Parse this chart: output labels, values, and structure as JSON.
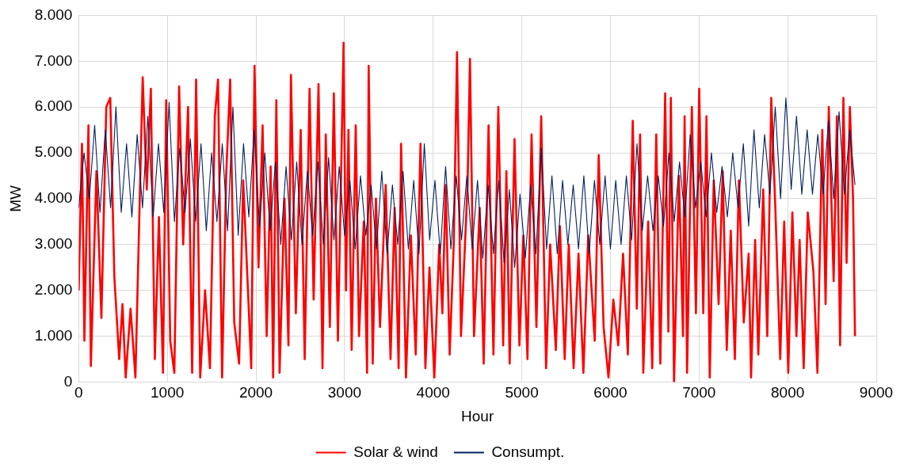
{
  "chart_data": {
    "type": "line",
    "xlabel": "Hour",
    "ylabel": "MW",
    "xlim": [
      0,
      9000
    ],
    "xticks": [
      0,
      1000,
      2000,
      3000,
      4000,
      5000,
      6000,
      7000,
      8000,
      9000
    ],
    "ylim": [
      0,
      8000
    ],
    "yticks": [
      {
        "value": 0,
        "label": "0"
      },
      {
        "value": 1000,
        "label": "1.000"
      },
      {
        "value": 2000,
        "label": "2.000"
      },
      {
        "value": 3000,
        "label": "3.000"
      },
      {
        "value": 4000,
        "label": "4.000"
      },
      {
        "value": 5000,
        "label": "5.000"
      },
      {
        "value": 6000,
        "label": "6.000"
      },
      {
        "value": 7000,
        "label": "7.000"
      },
      {
        "value": 8000,
        "label": "8.000"
      }
    ],
    "grid": true,
    "legend": "bottom",
    "marker": "none",
    "line_style": "solid",
    "series": [
      {
        "name": "Solar & wind",
        "color": "#ff0000",
        "x": [
          0,
          37,
          64,
          110,
          137,
          200,
          256,
          311,
          356,
          402,
          457,
          494,
          530,
          585,
          640,
          722,
          768,
          814,
          859,
          905,
          951,
          987,
          1033,
          1079,
          1133,
          1179,
          1234,
          1280,
          1325,
          1371,
          1426,
          1481,
          1536,
          1572,
          1618,
          1664,
          1709,
          1755,
          1810,
          1856,
          1910,
          1947,
          1984,
          2029,
          2075,
          2121,
          2166,
          2194,
          2230,
          2267,
          2322,
          2367,
          2395,
          2450,
          2505,
          2550,
          2605,
          2651,
          2706,
          2751,
          2788,
          2834,
          2879,
          2925,
          2989,
          3016,
          3044,
          3080,
          3126,
          3163,
          3217,
          3254,
          3272,
          3318,
          3354,
          3400,
          3464,
          3519,
          3565,
          3610,
          3638,
          3693,
          3748,
          3803,
          3857,
          3912,
          3958,
          4013,
          4068,
          4104,
          4141,
          4186,
          4232,
          4269,
          4314,
          4388,
          4415,
          4461,
          4525,
          4570,
          4625,
          4680,
          4735,
          4790,
          4826,
          4863,
          4918,
          4973,
          5018,
          5064,
          5110,
          5165,
          5219,
          5274,
          5320,
          5384,
          5430,
          5484,
          5530,
          5585,
          5640,
          5695,
          5750,
          5823,
          5868,
          5923,
          5978,
          6033,
          6088,
          6143,
          6197,
          6252,
          6298,
          6335,
          6371,
          6426,
          6472,
          6517,
          6563,
          6618,
          6654,
          6682,
          6718,
          6773,
          6819,
          6837,
          6865,
          6919,
          6965,
          7002,
          7048,
          7084,
          7121,
          7166,
          7221,
          7267,
          7313,
          7358,
          7404,
          7450,
          7505,
          7560,
          7587,
          7633,
          7669,
          7724,
          7770,
          7815,
          7861,
          7916,
          7961,
          8007,
          8053,
          8099,
          8135,
          8181,
          8227,
          8291,
          8336,
          8391,
          8428,
          8464,
          8519,
          8556,
          8592,
          8629,
          8665,
          8702,
          8738,
          8760
        ],
        "values": [
          2000,
          5200,
          900,
          5600,
          350,
          4600,
          1400,
          6000,
          6200,
          2300,
          500,
          1700,
          100,
          1600,
          100,
          6650,
          4200,
          6400,
          500,
          3600,
          200,
          6150,
          900,
          200,
          6450,
          3000,
          6000,
          200,
          6600,
          100,
          2000,
          300,
          5800,
          6600,
          100,
          4500,
          6600,
          1300,
          400,
          4400,
          2000,
          300,
          6900,
          2500,
          5600,
          1000,
          4700,
          100,
          6150,
          200,
          4000,
          800,
          6700,
          1500,
          5500,
          500,
          6400,
          1800,
          6500,
          300,
          5400,
          1200,
          6300,
          900,
          7400,
          2000,
          5500,
          700,
          5600,
          1000,
          3500,
          200,
          6900,
          400,
          4000,
          1200,
          4300,
          500,
          3800,
          300,
          5200,
          100,
          3200,
          600,
          5200,
          300,
          2500,
          100,
          3000,
          1500,
          4300,
          600,
          3000,
          7200,
          1000,
          4300,
          7050,
          1000,
          3800,
          400,
          5600,
          600,
          6000,
          800,
          4600,
          400,
          5300,
          800,
          3200,
          500,
          5400,
          1200,
          5800,
          300,
          3000,
          700,
          3400,
          500,
          3000,
          300,
          2800,
          200,
          3200,
          900,
          4950,
          1200,
          100,
          1800,
          800,
          2800,
          600,
          5700,
          1600,
          5400,
          200,
          3500,
          300,
          5400,
          400,
          6300,
          1100,
          6200,
          0,
          4500,
          1000,
          5800,
          200,
          6000,
          1500,
          6400,
          1500,
          5800,
          100,
          4400,
          1700,
          4600,
          700,
          3300,
          500,
          4400,
          1300,
          2800,
          100,
          3100,
          600,
          4200,
          1000,
          6200,
          3800,
          500,
          3500,
          200,
          3700,
          1000,
          3100,
          300,
          3700,
          2400,
          200,
          5500,
          1700,
          6000,
          2200,
          5800,
          800,
          6200,
          2600,
          6000,
          4000,
          1000
        ]
      },
      {
        "name": "Consumpt.",
        "color": "#002060",
        "x": [
          0,
          60,
          120,
          180,
          240,
          300,
          360,
          420,
          480,
          540,
          600,
          660,
          720,
          780,
          840,
          900,
          960,
          1020,
          1080,
          1140,
          1200,
          1260,
          1320,
          1380,
          1440,
          1500,
          1560,
          1620,
          1680,
          1740,
          1800,
          1860,
          1920,
          1980,
          2040,
          2100,
          2160,
          2220,
          2280,
          2340,
          2400,
          2460,
          2520,
          2580,
          2640,
          2700,
          2760,
          2820,
          2880,
          2940,
          3000,
          3060,
          3120,
          3180,
          3240,
          3300,
          3360,
          3420,
          3480,
          3540,
          3600,
          3660,
          3720,
          3780,
          3840,
          3900,
          3960,
          4020,
          4080,
          4140,
          4200,
          4260,
          4320,
          4380,
          4440,
          4500,
          4560,
          4620,
          4680,
          4740,
          4800,
          4860,
          4920,
          4980,
          5040,
          5100,
          5160,
          5220,
          5280,
          5340,
          5400,
          5460,
          5520,
          5580,
          5640,
          5700,
          5760,
          5820,
          5880,
          5940,
          6000,
          6060,
          6120,
          6180,
          6240,
          6300,
          6360,
          6420,
          6480,
          6540,
          6600,
          6660,
          6720,
          6780,
          6840,
          6900,
          6960,
          7020,
          7080,
          7140,
          7200,
          7260,
          7320,
          7380,
          7440,
          7500,
          7560,
          7620,
          7680,
          7740,
          7800,
          7860,
          7920,
          7980,
          8040,
          8100,
          8160,
          8220,
          8280,
          8340,
          8400,
          8460,
          8520,
          8580,
          8640,
          8700,
          8760
        ],
        "values": [
          3800,
          5000,
          4000,
          5600,
          3700,
          5500,
          3800,
          6000,
          3700,
          5200,
          3600,
          5400,
          3800,
          5800,
          3600,
          5200,
          3700,
          6100,
          3500,
          5100,
          3700,
          5300,
          3500,
          5200,
          3300,
          5000,
          3500,
          5200,
          3300,
          6000,
          3200,
          5200,
          3600,
          5500,
          3400,
          5000,
          3300,
          4800,
          3000,
          4700,
          3100,
          4800,
          3000,
          4600,
          3200,
          4800,
          3000,
          4900,
          3100,
          4700,
          3200,
          4400,
          2900,
          4500,
          3200,
          4300,
          2900,
          4600,
          2800,
          4300,
          3000,
          4600,
          2900,
          4400,
          2800,
          5200,
          3100,
          4400,
          2800,
          4700,
          2900,
          4500,
          3100,
          4500,
          2900,
          4400,
          2700,
          4300,
          2800,
          4400,
          2600,
          4200,
          2500,
          4100,
          2700,
          4300,
          2800,
          5100,
          2900,
          4500,
          2800,
          4400,
          3000,
          4300,
          2900,
          4500,
          2800,
          4400,
          3000,
          4500,
          2900,
          4400,
          3000,
          4500,
          3100,
          5200,
          3300,
          4500,
          3300,
          4500,
          3400,
          5000,
          3500,
          4800,
          3600,
          5400,
          3800,
          4800,
          3600,
          5000,
          3700,
          4700,
          3600,
          5000,
          3800,
          5200,
          3400,
          5500,
          3800,
          5400,
          4100,
          6000,
          4000,
          6200,
          4200,
          5800,
          4100,
          5500,
          4100,
          5400,
          4100,
          5700,
          4000,
          5900,
          4100,
          5500,
          4300
        ]
      }
    ]
  }
}
